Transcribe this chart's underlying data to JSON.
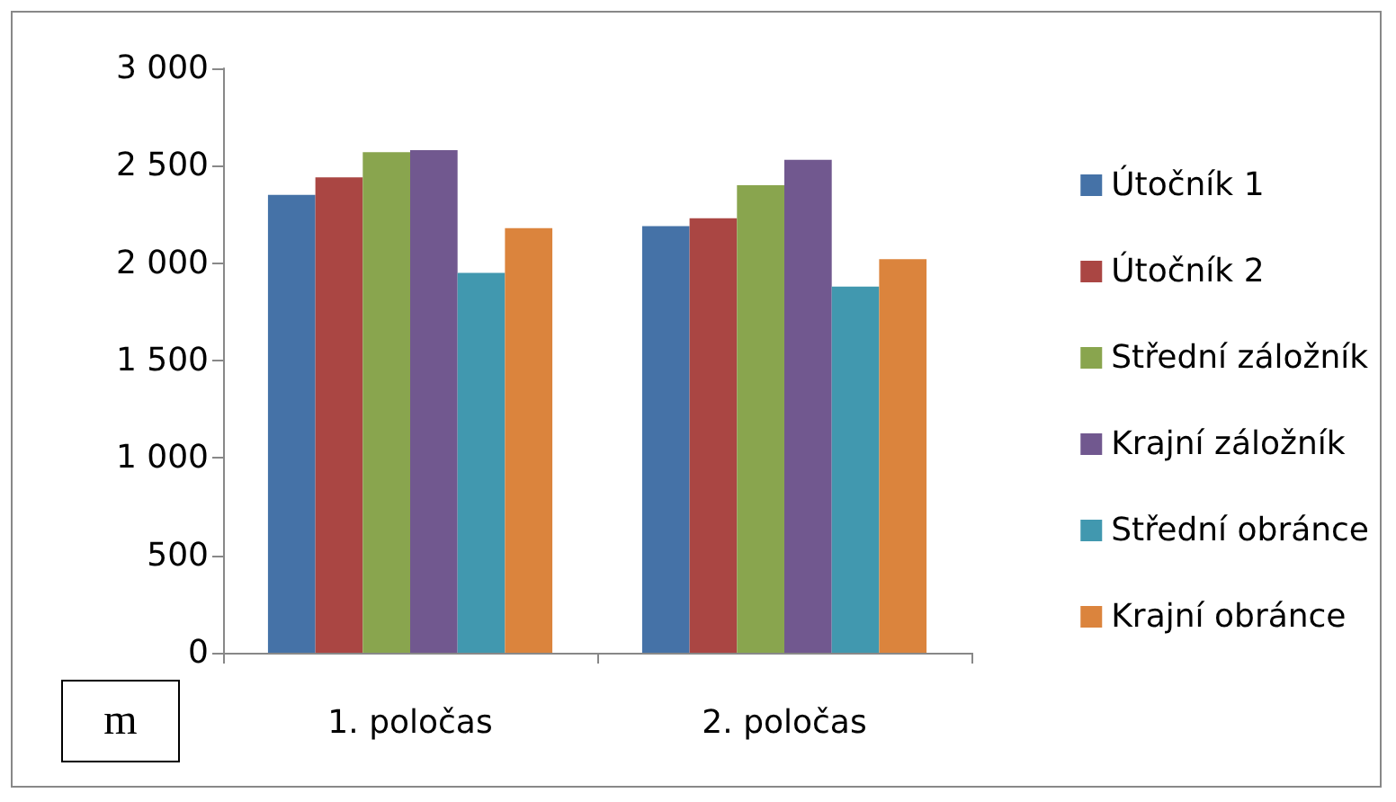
{
  "chart_data": {
    "type": "bar",
    "categories": [
      "1. poločas",
      "2. poločas"
    ],
    "series": [
      {
        "name": "Útočník 1",
        "color": "#4572a7",
        "values": [
          2350,
          2190
        ]
      },
      {
        "name": "Útočník 2",
        "color": "#aa4643",
        "values": [
          2440,
          2230
        ]
      },
      {
        "name": "Střední záložník",
        "color": "#89a54e",
        "values": [
          2570,
          2400
        ]
      },
      {
        "name": "Krajní záložník",
        "color": "#71588f",
        "values": [
          2580,
          2530
        ]
      },
      {
        "name": "Střední obránce",
        "color": "#4198af",
        "values": [
          1950,
          1880
        ]
      },
      {
        "name": "Krajní obránce",
        "color": "#db843d",
        "values": [
          2180,
          2020
        ]
      }
    ],
    "ylim": [
      0,
      3000
    ],
    "yticks": [
      0,
      500,
      {
        "value": 1000,
        "label": "1 000"
      },
      {
        "value": 1500,
        "label": "1 500"
      },
      {
        "value": 2000,
        "label": "2 000"
      },
      {
        "value": 2500,
        "label": "2 500"
      },
      {
        "value": 3000,
        "label": "3 000"
      }
    ],
    "grid": false,
    "legend": "right",
    "annotations": [
      "m"
    ]
  }
}
